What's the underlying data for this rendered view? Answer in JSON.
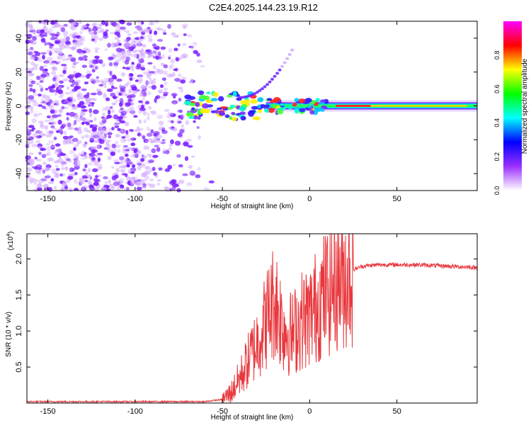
{
  "title": "C2E4.2025.144.23.19.R12",
  "chart_data": [
    {
      "type": "heatmap",
      "xlabel": "Height of straight line (km)",
      "ylabel": "Frequency (Hz)",
      "xlim": [
        -162,
        96
      ],
      "ylim": [
        -50,
        50
      ],
      "xticks": [
        "-150",
        "-100",
        "-50",
        "0",
        "50"
      ],
      "xtick_values": [
        -150,
        -100,
        -50,
        0,
        50
      ],
      "yticks": [
        "40",
        "20",
        "0",
        "-20",
        "-40"
      ],
      "ytick_values": [
        40,
        20,
        0,
        -20,
        -40
      ],
      "colorbar": {
        "label": "Normalized spectral amplitude",
        "range": [
          0,
          1
        ],
        "ticks": [
          "0.0",
          "0.2",
          "0.4",
          "0.6",
          "0.8"
        ],
        "tick_values": [
          0.0,
          0.2,
          0.4,
          0.6,
          0.8
        ],
        "colormap": [
          "#ffffff",
          "#9b30ff",
          "#0000ff",
          "#00ffff",
          "#00ff00",
          "#ffff00",
          "#ff0000",
          "#ff00ff"
        ]
      },
      "features": {
        "noise_region_x": [
          -162,
          -55
        ],
        "carrier_line": {
          "x_start": -70,
          "x_end": 96,
          "frequency": 0
        },
        "drift_branch": {
          "x_start": -40,
          "x_end": -10,
          "frequency_start": 5,
          "frequency_end": 33
        }
      }
    },
    {
      "type": "line",
      "xlabel": "Height of straight line (km)",
      "ylabel": "SNR (10 * v/v)",
      "y_multiplier_label": "(x10",
      "y_multiplier_exp": "4",
      "y_multiplier_close": ")",
      "xlim": [
        -162,
        96
      ],
      "ylim": [
        0,
        2.35
      ],
      "xticks": [
        "-150",
        "-100",
        "-50",
        "0",
        "50"
      ],
      "xtick_values": [
        -150,
        -100,
        -50,
        0,
        50
      ],
      "yticks": [
        "2.0",
        "1.5",
        "1.0",
        "0.5"
      ],
      "ytick_values": [
        2.0,
        1.5,
        1.0,
        0.5
      ],
      "series": [
        {
          "color": "#e8383d",
          "points": [
            [
              -162,
              0.02
            ],
            [
              -100,
              0.02
            ],
            [
              -60,
              0.02
            ],
            [
              -50,
              0.05
            ],
            [
              -45,
              0.15
            ],
            [
              -40,
              0.35
            ],
            [
              -35,
              0.6
            ],
            [
              -30,
              0.85
            ],
            [
              -25,
              1.15
            ],
            [
              -20,
              1.45
            ],
            [
              -15,
              1.05
            ],
            [
              -10,
              0.95
            ],
            [
              -5,
              1.15
            ],
            [
              0,
              1.2
            ],
            [
              5,
              1.4
            ],
            [
              10,
              1.55
            ],
            [
              15,
              1.7
            ],
            [
              20,
              1.75
            ],
            [
              25,
              1.85
            ],
            [
              30,
              1.9
            ],
            [
              40,
              1.92
            ],
            [
              60,
              1.92
            ],
            [
              80,
              1.9
            ],
            [
              96,
              1.88
            ]
          ]
        }
      ]
    }
  ]
}
